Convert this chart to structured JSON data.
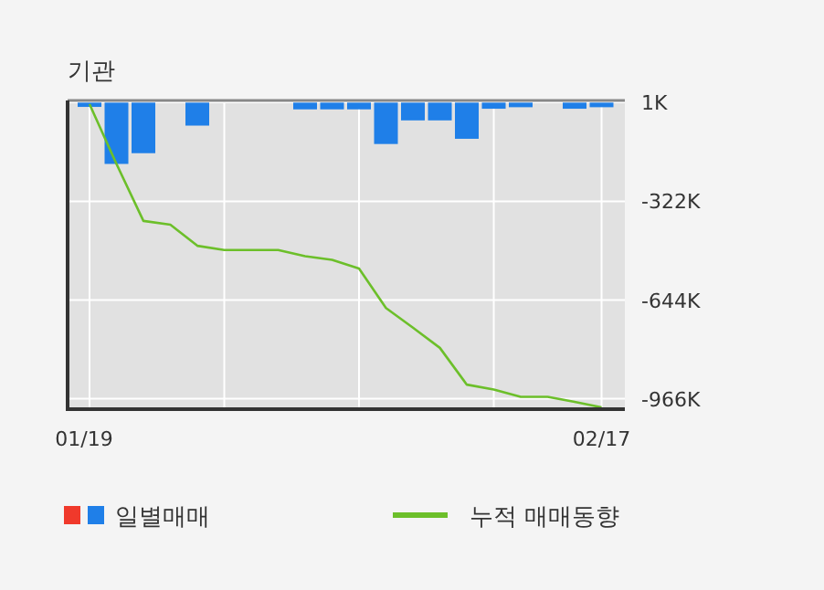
{
  "chart_data": {
    "type": "bar",
    "title": "기관",
    "categories": [
      "01/19",
      null,
      null,
      null,
      null,
      null,
      null,
      null,
      null,
      null,
      null,
      null,
      null,
      null,
      null,
      null,
      null,
      null,
      null,
      "02/17"
    ],
    "series": [
      {
        "name": "일별매매",
        "type": "bar",
        "color": "#1f7fe8",
        "values": [
          -14,
          -200,
          -165,
          0,
          -75,
          0,
          0,
          0,
          -22,
          -22,
          -22,
          -135,
          -58,
          -58,
          -118,
          -20,
          -15,
          0,
          -20,
          -15
        ]
      },
      {
        "name": "누적 매매동향",
        "type": "line",
        "color": "#6cbf2a",
        "values": [
          -5,
          -200,
          -386,
          -398,
          -467,
          -481,
          -481,
          -481,
          -501,
          -513,
          -541,
          -670,
          -734,
          -800,
          -920,
          -936,
          -960,
          -960,
          -976,
          -994
        ]
      }
    ],
    "ylim": [
      -1000,
      7
    ],
    "yticks": [
      {
        "value": 1,
        "label": "1K"
      },
      {
        "value": -322,
        "label": "-322K"
      },
      {
        "value": -644,
        "label": "-644K"
      },
      {
        "value": -966,
        "label": "-966K"
      }
    ],
    "grid": true,
    "legend": "bottom"
  }
}
